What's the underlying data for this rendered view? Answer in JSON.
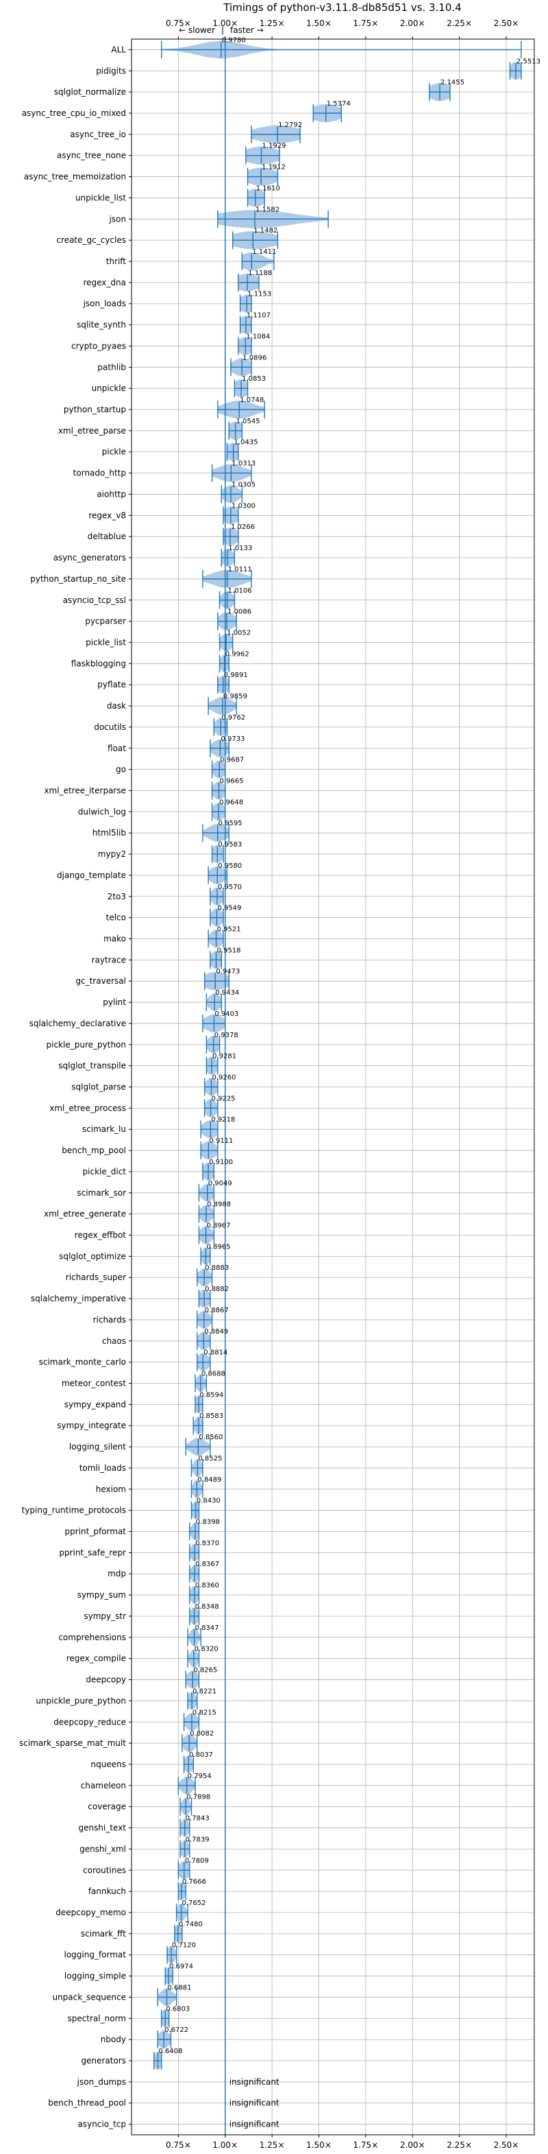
{
  "chart_data": {
    "type": "violin",
    "title": "Timings of python-v3.11.8-db85d51 vs. 3.10.4",
    "xlim": [
      0.5,
      2.65
    ],
    "x_ticks": [
      0.75,
      1.0,
      1.25,
      1.5,
      1.75,
      2.0,
      2.25,
      2.5
    ],
    "x_tick_labels": [
      "0.75×",
      "1.00×",
      "1.25×",
      "1.50×",
      "1.75×",
      "2.00×",
      "2.25×",
      "2.50×"
    ],
    "reference_line": 1.0,
    "annotation": {
      "slower": "← slower",
      "separator": "|",
      "faster": "faster →"
    },
    "insignificant_label": "insignificant",
    "colors": {
      "violin": "#a9c8e8",
      "whisker": "#1f77b4",
      "median": "#e377c2",
      "grid": "#b0b0b0",
      "refline": "#1f77b4"
    },
    "benchmarks": [
      {
        "name": "ALL",
        "value": 0.978,
        "label": "0.9780",
        "min": 0.66,
        "max": 2.58,
        "spread": 0.12
      },
      {
        "name": "pidigits",
        "value": 2.5513,
        "label": "2.5513",
        "min": 2.52,
        "max": 2.58,
        "spread": 0.03
      },
      {
        "name": "sqlglot_normalize",
        "value": 2.1455,
        "label": "2.1455",
        "min": 2.09,
        "max": 2.2,
        "spread": 0.06
      },
      {
        "name": "async_tree_cpu_io_mixed",
        "value": 1.5374,
        "label": "1.5374",
        "min": 1.47,
        "max": 1.62,
        "spread": 0.08
      },
      {
        "name": "async_tree_io",
        "value": 1.2792,
        "label": "1.2792",
        "min": 1.14,
        "max": 1.4,
        "spread": 0.12
      },
      {
        "name": "async_tree_none",
        "value": 1.1929,
        "label": "1.1929",
        "min": 1.11,
        "max": 1.29,
        "spread": 0.09
      },
      {
        "name": "async_tree_memoization",
        "value": 1.1912,
        "label": "1.1912",
        "min": 1.12,
        "max": 1.28,
        "spread": 0.08
      },
      {
        "name": "unpickle_list",
        "value": 1.161,
        "label": "1.1610",
        "min": 1.12,
        "max": 1.21,
        "spread": 0.05
      },
      {
        "name": "json",
        "value": 1.1582,
        "label": "1.1582",
        "min": 0.96,
        "max": 1.55,
        "spread": 0.2
      },
      {
        "name": "create_gc_cycles",
        "value": 1.1482,
        "label": "1.1482",
        "min": 1.04,
        "max": 1.28,
        "spread": 0.12
      },
      {
        "name": "thrift",
        "value": 1.1411,
        "label": "1.1411",
        "min": 1.09,
        "max": 1.26,
        "spread": 0.06
      },
      {
        "name": "regex_dna",
        "value": 1.1188,
        "label": "1.1188",
        "min": 1.07,
        "max": 1.18,
        "spread": 0.06
      },
      {
        "name": "json_loads",
        "value": 1.1153,
        "label": "1.1153",
        "min": 1.08,
        "max": 1.14,
        "spread": 0.04
      },
      {
        "name": "sqlite_synth",
        "value": 1.1107,
        "label": "1.1107",
        "min": 1.08,
        "max": 1.14,
        "spread": 0.04
      },
      {
        "name": "crypto_pyaes",
        "value": 1.1084,
        "label": "1.1084",
        "min": 1.07,
        "max": 1.14,
        "spread": 0.04
      },
      {
        "name": "pathlib",
        "value": 1.0896,
        "label": "1.0896",
        "min": 1.03,
        "max": 1.14,
        "spread": 0.05
      },
      {
        "name": "unpickle",
        "value": 1.0853,
        "label": "1.0853",
        "min": 1.05,
        "max": 1.12,
        "spread": 0.04
      },
      {
        "name": "python_startup",
        "value": 1.0748,
        "label": "1.0748",
        "min": 0.96,
        "max": 1.21,
        "spread": 0.08
      },
      {
        "name": "xml_etree_parse",
        "value": 1.0545,
        "label": "1.0545",
        "min": 1.02,
        "max": 1.09,
        "spread": 0.04
      },
      {
        "name": "pickle",
        "value": 1.0435,
        "label": "1.0435",
        "min": 1.01,
        "max": 1.07,
        "spread": 0.04
      },
      {
        "name": "tornado_http",
        "value": 1.0313,
        "label": "1.0313",
        "min": 0.93,
        "max": 1.14,
        "spread": 0.07
      },
      {
        "name": "aiohttp",
        "value": 1.0305,
        "label": "1.0305",
        "min": 0.98,
        "max": 1.09,
        "spread": 0.04
      },
      {
        "name": "regex_v8",
        "value": 1.03,
        "label": "1.0300",
        "min": 0.99,
        "max": 1.07,
        "spread": 0.04
      },
      {
        "name": "deltablue",
        "value": 1.0266,
        "label": "1.0266",
        "min": 0.99,
        "max": 1.07,
        "spread": 0.04
      },
      {
        "name": "async_generators",
        "value": 1.0133,
        "label": "1.0133",
        "min": 0.98,
        "max": 1.05,
        "spread": 0.03
      },
      {
        "name": "python_startup_no_site",
        "value": 1.0111,
        "label": "1.0111",
        "min": 0.88,
        "max": 1.14,
        "spread": 0.08
      },
      {
        "name": "asyncio_tcp_ssl",
        "value": 1.0106,
        "label": "1.0106",
        "min": 0.97,
        "max": 1.05,
        "spread": 0.03
      },
      {
        "name": "pycparser",
        "value": 1.0086,
        "label": "1.0086",
        "min": 0.96,
        "max": 1.06,
        "spread": 0.04
      },
      {
        "name": "pickle_list",
        "value": 1.0052,
        "label": "1.0052",
        "min": 0.97,
        "max": 1.04,
        "spread": 0.03
      },
      {
        "name": "flaskblogging",
        "value": 0.9962,
        "label": "0.9962",
        "min": 0.97,
        "max": 1.02,
        "spread": 0.02
      },
      {
        "name": "pyflate",
        "value": 0.9891,
        "label": "0.9891",
        "min": 0.96,
        "max": 1.02,
        "spread": 0.03
      },
      {
        "name": "dask",
        "value": 0.9859,
        "label": "0.9859",
        "min": 0.91,
        "max": 1.06,
        "spread": 0.05
      },
      {
        "name": "docutils",
        "value": 0.9762,
        "label": "0.9762",
        "min": 0.94,
        "max": 1.01,
        "spread": 0.03
      },
      {
        "name": "float",
        "value": 0.9733,
        "label": "0.9733",
        "min": 0.92,
        "max": 1.02,
        "spread": 0.04
      },
      {
        "name": "go",
        "value": 0.9687,
        "label": "0.9687",
        "min": 0.93,
        "max": 1.0,
        "spread": 0.03
      },
      {
        "name": "xml_etree_iterparse",
        "value": 0.9665,
        "label": "0.9665",
        "min": 0.93,
        "max": 1.0,
        "spread": 0.03
      },
      {
        "name": "dulwich_log",
        "value": 0.9648,
        "label": "0.9648",
        "min": 0.93,
        "max": 1.0,
        "spread": 0.03
      },
      {
        "name": "html5lib",
        "value": 0.9595,
        "label": "0.9595",
        "min": 0.88,
        "max": 1.02,
        "spread": 0.05
      },
      {
        "name": "mypy2",
        "value": 0.9583,
        "label": "0.9583",
        "min": 0.93,
        "max": 0.99,
        "spread": 0.03
      },
      {
        "name": "django_template",
        "value": 0.958,
        "label": "0.9580",
        "min": 0.91,
        "max": 1.01,
        "spread": 0.04
      },
      {
        "name": "2to3",
        "value": 0.957,
        "label": "0.9570",
        "min": 0.92,
        "max": 0.99,
        "spread": 0.03
      },
      {
        "name": "telco",
        "value": 0.9549,
        "label": "0.9549",
        "min": 0.92,
        "max": 0.99,
        "spread": 0.03
      },
      {
        "name": "mako",
        "value": 0.9521,
        "label": "0.9521",
        "min": 0.91,
        "max": 0.99,
        "spread": 0.03
      },
      {
        "name": "raytrace",
        "value": 0.9518,
        "label": "0.9518",
        "min": 0.92,
        "max": 0.98,
        "spread": 0.03
      },
      {
        "name": "gc_traversal",
        "value": 0.9473,
        "label": "0.9473",
        "min": 0.89,
        "max": 1.02,
        "spread": 0.07
      },
      {
        "name": "pylint",
        "value": 0.9434,
        "label": "0.9434",
        "min": 0.9,
        "max": 0.98,
        "spread": 0.03
      },
      {
        "name": "sqlalchemy_declarative",
        "value": 0.9403,
        "label": "0.9403",
        "min": 0.88,
        "max": 1.0,
        "spread": 0.05
      },
      {
        "name": "pickle_pure_python",
        "value": 0.9378,
        "label": "0.9378",
        "min": 0.9,
        "max": 0.97,
        "spread": 0.03
      },
      {
        "name": "sqlglot_transpile",
        "value": 0.9281,
        "label": "0.9281",
        "min": 0.9,
        "max": 0.96,
        "spread": 0.03
      },
      {
        "name": "sqlglot_parse",
        "value": 0.926,
        "label": "0.9260",
        "min": 0.89,
        "max": 0.96,
        "spread": 0.03
      },
      {
        "name": "xml_etree_process",
        "value": 0.9225,
        "label": "0.9225",
        "min": 0.89,
        "max": 0.96,
        "spread": 0.03
      },
      {
        "name": "scimark_lu",
        "value": 0.9218,
        "label": "0.9218",
        "min": 0.87,
        "max": 0.96,
        "spread": 0.04
      },
      {
        "name": "bench_mp_pool",
        "value": 0.9111,
        "label": "0.9111",
        "min": 0.87,
        "max": 0.96,
        "spread": 0.04
      },
      {
        "name": "pickle_dict",
        "value": 0.91,
        "label": "0.9100",
        "min": 0.88,
        "max": 0.94,
        "spread": 0.03
      },
      {
        "name": "scimark_sor",
        "value": 0.9049,
        "label": "0.9049",
        "min": 0.86,
        "max": 0.94,
        "spread": 0.03
      },
      {
        "name": "xml_etree_generate",
        "value": 0.8988,
        "label": "0.8988",
        "min": 0.86,
        "max": 0.94,
        "spread": 0.03
      },
      {
        "name": "regex_effbot",
        "value": 0.8967,
        "label": "0.8967",
        "min": 0.86,
        "max": 0.94,
        "spread": 0.03
      },
      {
        "name": "sqlglot_optimize",
        "value": 0.8965,
        "label": "0.8965",
        "min": 0.87,
        "max": 0.92,
        "spread": 0.02
      },
      {
        "name": "richards_super",
        "value": 0.8883,
        "label": "0.8883",
        "min": 0.85,
        "max": 0.93,
        "spread": 0.03
      },
      {
        "name": "sqlalchemy_imperative",
        "value": 0.8882,
        "label": "0.8882",
        "min": 0.86,
        "max": 0.92,
        "spread": 0.03
      },
      {
        "name": "richards",
        "value": 0.8867,
        "label": "0.8867",
        "min": 0.85,
        "max": 0.93,
        "spread": 0.03
      },
      {
        "name": "chaos",
        "value": 0.8849,
        "label": "0.8849",
        "min": 0.85,
        "max": 0.92,
        "spread": 0.03
      },
      {
        "name": "scimark_monte_carlo",
        "value": 0.8814,
        "label": "0.8814",
        "min": 0.85,
        "max": 0.92,
        "spread": 0.03
      },
      {
        "name": "meteor_contest",
        "value": 0.8688,
        "label": "0.8688",
        "min": 0.84,
        "max": 0.9,
        "spread": 0.02
      },
      {
        "name": "sympy_expand",
        "value": 0.8594,
        "label": "0.8594",
        "min": 0.84,
        "max": 0.88,
        "spread": 0.02
      },
      {
        "name": "sympy_integrate",
        "value": 0.8583,
        "label": "0.8583",
        "min": 0.83,
        "max": 0.88,
        "spread": 0.02
      },
      {
        "name": "logging_silent",
        "value": 0.856,
        "label": "0.8560",
        "min": 0.79,
        "max": 0.92,
        "spread": 0.04
      },
      {
        "name": "tomli_loads",
        "value": 0.8525,
        "label": "0.8525",
        "min": 0.82,
        "max": 0.88,
        "spread": 0.02
      },
      {
        "name": "hexiom",
        "value": 0.8489,
        "label": "0.8489",
        "min": 0.82,
        "max": 0.88,
        "spread": 0.02
      },
      {
        "name": "typing_runtime_protocols",
        "value": 0.843,
        "label": "0.8430",
        "min": 0.82,
        "max": 0.86,
        "spread": 0.02
      },
      {
        "name": "pprint_pformat",
        "value": 0.8398,
        "label": "0.8398",
        "min": 0.81,
        "max": 0.86,
        "spread": 0.02
      },
      {
        "name": "pprint_safe_repr",
        "value": 0.837,
        "label": "0.8370",
        "min": 0.81,
        "max": 0.86,
        "spread": 0.02
      },
      {
        "name": "mdp",
        "value": 0.8367,
        "label": "0.8367",
        "min": 0.81,
        "max": 0.86,
        "spread": 0.02
      },
      {
        "name": "sympy_sum",
        "value": 0.836,
        "label": "0.8360",
        "min": 0.81,
        "max": 0.86,
        "spread": 0.02
      },
      {
        "name": "sympy_str",
        "value": 0.8348,
        "label": "0.8348",
        "min": 0.81,
        "max": 0.86,
        "spread": 0.02
      },
      {
        "name": "comprehensions",
        "value": 0.8347,
        "label": "0.8347",
        "min": 0.8,
        "max": 0.87,
        "spread": 0.02
      },
      {
        "name": "regex_compile",
        "value": 0.832,
        "label": "0.8320",
        "min": 0.8,
        "max": 0.86,
        "spread": 0.02
      },
      {
        "name": "deepcopy",
        "value": 0.8265,
        "label": "0.8265",
        "min": 0.79,
        "max": 0.86,
        "spread": 0.03
      },
      {
        "name": "unpickle_pure_python",
        "value": 0.8221,
        "label": "0.8221",
        "min": 0.8,
        "max": 0.85,
        "spread": 0.02
      },
      {
        "name": "deepcopy_reduce",
        "value": 0.8215,
        "label": "0.8215",
        "min": 0.78,
        "max": 0.86,
        "spread": 0.03
      },
      {
        "name": "scimark_sparse_mat_mult",
        "value": 0.8082,
        "label": "0.8082",
        "min": 0.77,
        "max": 0.85,
        "spread": 0.03
      },
      {
        "name": "nqueens",
        "value": 0.8037,
        "label": "0.8037",
        "min": 0.78,
        "max": 0.83,
        "spread": 0.02
      },
      {
        "name": "chameleon",
        "value": 0.7954,
        "label": "0.7954",
        "min": 0.75,
        "max": 0.84,
        "spread": 0.03
      },
      {
        "name": "coverage",
        "value": 0.7898,
        "label": "0.7898",
        "min": 0.76,
        "max": 0.82,
        "spread": 0.02
      },
      {
        "name": "genshi_text",
        "value": 0.7843,
        "label": "0.7843",
        "min": 0.76,
        "max": 0.81,
        "spread": 0.02
      },
      {
        "name": "genshi_xml",
        "value": 0.7839,
        "label": "0.7839",
        "min": 0.76,
        "max": 0.81,
        "spread": 0.02
      },
      {
        "name": "coroutines",
        "value": 0.7809,
        "label": "0.7809",
        "min": 0.75,
        "max": 0.81,
        "spread": 0.03
      },
      {
        "name": "fannkuch",
        "value": 0.7666,
        "label": "0.7666",
        "min": 0.75,
        "max": 0.79,
        "spread": 0.02
      },
      {
        "name": "deepcopy_memo",
        "value": 0.7652,
        "label": "0.7652",
        "min": 0.74,
        "max": 0.8,
        "spread": 0.02
      },
      {
        "name": "scimark_fft",
        "value": 0.748,
        "label": "0.7480",
        "min": 0.73,
        "max": 0.77,
        "spread": 0.02
      },
      {
        "name": "logging_format",
        "value": 0.712,
        "label": "0.7120",
        "min": 0.69,
        "max": 0.74,
        "spread": 0.02
      },
      {
        "name": "logging_simple",
        "value": 0.6974,
        "label": "0.6974",
        "min": 0.68,
        "max": 0.72,
        "spread": 0.02
      },
      {
        "name": "unpack_sequence",
        "value": 0.6881,
        "label": "0.6881",
        "min": 0.64,
        "max": 0.74,
        "spread": 0.03
      },
      {
        "name": "spectral_norm",
        "value": 0.6803,
        "label": "0.6803",
        "min": 0.66,
        "max": 0.7,
        "spread": 0.02
      },
      {
        "name": "nbody",
        "value": 0.6722,
        "label": "0.6722",
        "min": 0.64,
        "max": 0.71,
        "spread": 0.03
      },
      {
        "name": "generators",
        "value": 0.6408,
        "label": "0.6408",
        "min": 0.62,
        "max": 0.66,
        "spread": 0.02
      },
      {
        "name": "json_dumps",
        "value": null,
        "label": null,
        "insignificant": true
      },
      {
        "name": "bench_thread_pool",
        "value": null,
        "label": null,
        "insignificant": true
      },
      {
        "name": "asyncio_tcp",
        "value": null,
        "label": null,
        "insignificant": true
      }
    ]
  }
}
